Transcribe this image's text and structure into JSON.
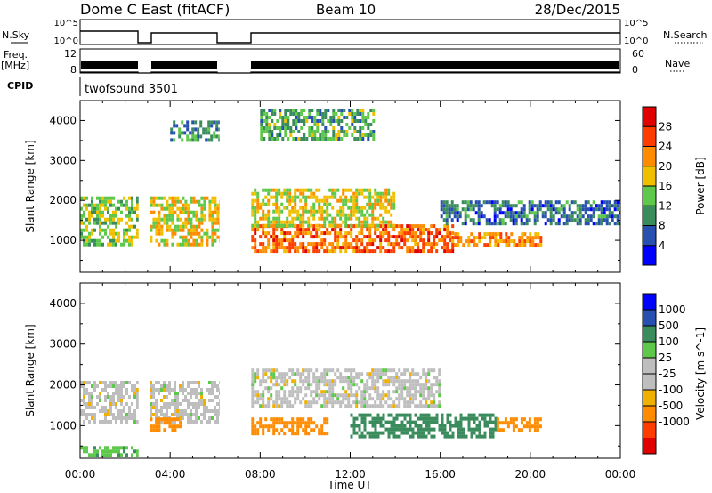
{
  "header": {
    "station": "Dome C East (fitACF)",
    "beam": "Beam 10",
    "date": "28/Dec/2015"
  },
  "strip_labels": {
    "nsky": "N.Sky",
    "nsearch": "N.Search",
    "freq": "Freq.",
    "freq_unit": "[MHz]",
    "nave": "Nave",
    "cpid": "CPID",
    "cpid_value": "twofsound 3501",
    "nsky_top": "10^5",
    "nsky_bottom": "10^0",
    "freq_top": "12",
    "freq_bottom": "8",
    "nave_top": "60",
    "nave_bottom": "0"
  },
  "x_axis": {
    "title": "Time UT",
    "ticks": [
      "00:00",
      "04:00",
      "08:00",
      "12:00",
      "16:00",
      "20:00",
      "00:00"
    ]
  },
  "colors": {
    "power_scale": [
      "#0000ff",
      "#2850b0",
      "#3a8c5c",
      "#5ec84a",
      "#f0c000",
      "#ff8c00",
      "#ff3c00",
      "#e00000"
    ],
    "velocity_scale": [
      "#e00000",
      "#ff3c00",
      "#ff8c00",
      "#f0b000",
      "#bebebe",
      "#bebebe",
      "#5ec84a",
      "#3a8c5c",
      "#2850b0",
      "#0000ff"
    ]
  },
  "chart_data": [
    {
      "type": "heatmap",
      "name": "power",
      "ylabel": "Slant Range [km]",
      "yticks": [
        1000,
        2000,
        3000,
        4000
      ],
      "ylim": [
        200,
        4500
      ],
      "xlim_hours": [
        0,
        24
      ],
      "colorbar": {
        "label": "Power [dB]",
        "ticks": [
          4,
          8,
          12,
          16,
          20,
          24,
          28
        ],
        "range": [
          0,
          32
        ]
      },
      "data_gaps_hours": [
        [
          2.6,
          3.1
        ],
        [
          6.2,
          7.6
        ]
      ],
      "regions": [
        {
          "t0": 0.0,
          "t1": 2.6,
          "r0": 900,
          "r1": 2100,
          "value": 15
        },
        {
          "t0": 3.1,
          "t1": 6.2,
          "r0": 900,
          "r1": 2100,
          "value": 18
        },
        {
          "t0": 4.0,
          "t1": 6.2,
          "r0": 3500,
          "r1": 4000,
          "value": 10
        },
        {
          "t0": 7.6,
          "t1": 16.5,
          "r0": 700,
          "r1": 1400,
          "value": 24
        },
        {
          "t0": 7.6,
          "t1": 14.0,
          "r0": 1400,
          "r1": 2300,
          "value": 17
        },
        {
          "t0": 16.5,
          "t1": 20.5,
          "r0": 900,
          "r1": 1200,
          "value": 22
        },
        {
          "t0": 16.0,
          "t1": 24.0,
          "r0": 1400,
          "r1": 2000,
          "value": 8
        },
        {
          "t0": 8.0,
          "t1": 13.0,
          "r0": 3500,
          "r1": 4300,
          "value": 12
        }
      ]
    },
    {
      "type": "heatmap",
      "name": "velocity",
      "ylabel": "Slant Range [km]",
      "yticks": [
        1000,
        2000,
        3000,
        4000
      ],
      "ylim": [
        200,
        4500
      ],
      "xlim_hours": [
        0,
        24
      ],
      "colorbar": {
        "label": "Velocity [m s^-1]",
        "ticks": [
          1000,
          500,
          100,
          25,
          -25,
          -100,
          -500,
          -1000
        ]
      },
      "data_gaps_hours": [
        [
          2.6,
          3.1
        ],
        [
          6.2,
          7.6
        ]
      ],
      "regions": [
        {
          "t0": 0.0,
          "t1": 6.2,
          "r0": 1100,
          "r1": 2100,
          "value": 0
        },
        {
          "t0": 3.1,
          "t1": 4.5,
          "r0": 900,
          "r1": 1200,
          "value": -200
        },
        {
          "t0": 7.6,
          "t1": 11.0,
          "r0": 800,
          "r1": 1200,
          "value": -300
        },
        {
          "t0": 12.0,
          "t1": 18.5,
          "r0": 700,
          "r1": 1300,
          "value": 150
        },
        {
          "t0": 18.5,
          "t1": 20.5,
          "r0": 900,
          "r1": 1200,
          "value": -300
        },
        {
          "t0": 7.6,
          "t1": 16.0,
          "r0": 1500,
          "r1": 2400,
          "value": 0
        },
        {
          "t0": 0.0,
          "t1": 2.6,
          "r0": 250,
          "r1": 500,
          "value": 80
        }
      ]
    }
  ]
}
